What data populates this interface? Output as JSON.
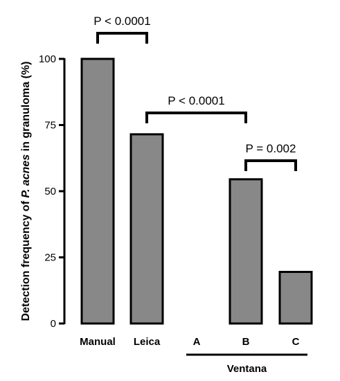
{
  "chart_data": {
    "type": "bar",
    "title": "",
    "ylabel_parts": [
      "Detection frequency of ",
      "P. acnes",
      " in granuloma (%)"
    ],
    "categories": [
      "Manual",
      "Leica",
      "A",
      "B",
      "C"
    ],
    "values": [
      100,
      71.5,
      0,
      54.5,
      19.5
    ],
    "ylim": [
      0,
      100
    ],
    "yticks": [
      0,
      25,
      50,
      75,
      100
    ],
    "bar_color": "#888888",
    "grid": false,
    "group": {
      "label": "Ventana",
      "categories": [
        "A",
        "B",
        "C"
      ]
    },
    "annotations": [
      {
        "text": "P < 0.0001",
        "from": "Manual",
        "to": "Leica"
      },
      {
        "text": "P < 0.0001",
        "from": "Leica",
        "to": "B"
      },
      {
        "text": "P = 0.002",
        "from": "B",
        "to": "C"
      }
    ]
  }
}
